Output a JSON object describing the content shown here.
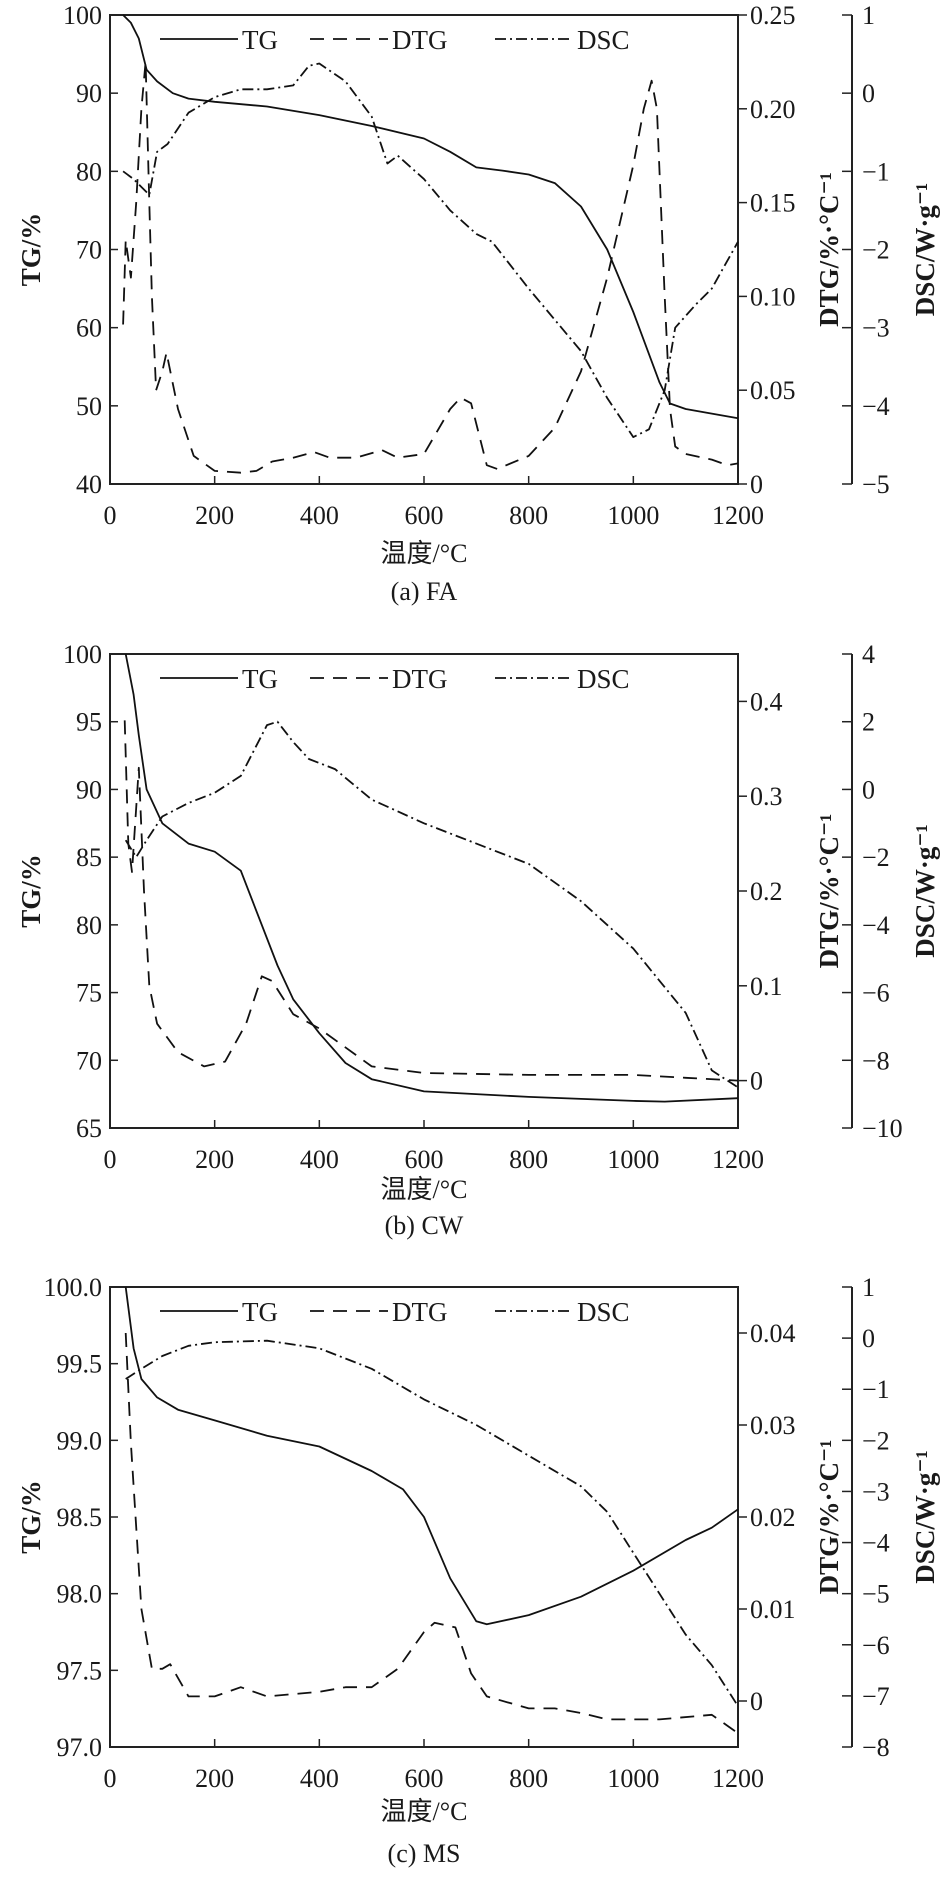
{
  "chart_data": [
    {
      "type": "line",
      "caption": "(a) FA",
      "xlabel": "温度/°C",
      "ylabel": "TG/%",
      "y2label": "DTG/%·°C⁻¹",
      "y3label": "DSC/W·g⁻¹",
      "xlim": [
        0,
        1200
      ],
      "ylim": [
        40,
        100
      ],
      "y2lim": [
        0,
        0.25
      ],
      "y3lim": [
        -5,
        1
      ],
      "xticks": [
        "0",
        "200",
        "400",
        "600",
        "800",
        "1000",
        "1200"
      ],
      "yticks": [
        "40",
        "50",
        "60",
        "70",
        "80",
        "90",
        "100"
      ],
      "y2ticks": [
        "0",
        "0.05",
        "0.10",
        "0.15",
        "0.20",
        "0.25"
      ],
      "y3ticks": [
        "−5",
        "−4",
        "−3",
        "−2",
        "−1",
        "0",
        "1"
      ],
      "legend": [
        "TG",
        "DTG",
        "DSC"
      ],
      "legend_position": "top",
      "series": [
        {
          "name": "TG",
          "axis": "y",
          "style": "solid",
          "points": [
            [
              25,
              100
            ],
            [
              40,
              99
            ],
            [
              55,
              97
            ],
            [
              70,
              93
            ],
            [
              90,
              91.5
            ],
            [
              120,
              90
            ],
            [
              150,
              89.3
            ],
            [
              200,
              88.9
            ],
            [
              300,
              88.3
            ],
            [
              400,
              87.2
            ],
            [
              500,
              85.8
            ],
            [
              600,
              84.2
            ],
            [
              650,
              82.5
            ],
            [
              700,
              80.5
            ],
            [
              750,
              80.1
            ],
            [
              800,
              79.6
            ],
            [
              850,
              78.5
            ],
            [
              900,
              75.5
            ],
            [
              950,
              70
            ],
            [
              1000,
              62
            ],
            [
              1050,
              53
            ],
            [
              1070,
              50.3
            ],
            [
              1100,
              49.6
            ],
            [
              1150,
              49
            ],
            [
              1200,
              48.4
            ]
          ]
        },
        {
          "name": "DTG",
          "axis": "y2",
          "style": "dashed",
          "points": [
            [
              25,
              0.085
            ],
            [
              30,
              0.13
            ],
            [
              40,
              0.11
            ],
            [
              50,
              0.15
            ],
            [
              60,
              0.2
            ],
            [
              68,
              0.225
            ],
            [
              75,
              0.15
            ],
            [
              80,
              0.1
            ],
            [
              88,
              0.05
            ],
            [
              100,
              0.06
            ],
            [
              108,
              0.07
            ],
            [
              130,
              0.04
            ],
            [
              160,
              0.015
            ],
            [
              200,
              0.007
            ],
            [
              250,
              0.006
            ],
            [
              280,
              0.007
            ],
            [
              310,
              0.012
            ],
            [
              350,
              0.014
            ],
            [
              390,
              0.017
            ],
            [
              420,
              0.014
            ],
            [
              470,
              0.014
            ],
            [
              520,
              0.018
            ],
            [
              550,
              0.014
            ],
            [
              600,
              0.016
            ],
            [
              650,
              0.04
            ],
            [
              670,
              0.046
            ],
            [
              690,
              0.043
            ],
            [
              720,
              0.01
            ],
            [
              740,
              0.008
            ],
            [
              800,
              0.015
            ],
            [
              850,
              0.03
            ],
            [
              900,
              0.06
            ],
            [
              950,
              0.11
            ],
            [
              1000,
              0.17
            ],
            [
              1020,
              0.2
            ],
            [
              1035,
              0.215
            ],
            [
              1045,
              0.2
            ],
            [
              1060,
              0.1
            ],
            [
              1070,
              0.04
            ],
            [
              1080,
              0.02
            ],
            [
              1100,
              0.016
            ],
            [
              1150,
              0.013
            ],
            [
              1180,
              0.01
            ],
            [
              1200,
              0.011
            ]
          ]
        },
        {
          "name": "DSC",
          "axis": "y3",
          "style": "dashdot",
          "points": [
            [
              25,
              -1
            ],
            [
              45,
              -1.1
            ],
            [
              60,
              -1.2
            ],
            [
              75,
              -1.3
            ],
            [
              90,
              -0.75
            ],
            [
              110,
              -0.65
            ],
            [
              150,
              -0.25
            ],
            [
              200,
              -0.05
            ],
            [
              250,
              0.05
            ],
            [
              300,
              0.05
            ],
            [
              350,
              0.1
            ],
            [
              380,
              0.35
            ],
            [
              400,
              0.38
            ],
            [
              450,
              0.15
            ],
            [
              500,
              -0.3
            ],
            [
              530,
              -0.9
            ],
            [
              550,
              -0.8
            ],
            [
              600,
              -1.1
            ],
            [
              650,
              -1.5
            ],
            [
              700,
              -1.8
            ],
            [
              730,
              -1.9
            ],
            [
              800,
              -2.5
            ],
            [
              900,
              -3.3
            ],
            [
              950,
              -3.9
            ],
            [
              1000,
              -4.4
            ],
            [
              1030,
              -4.3
            ],
            [
              1060,
              -3.8
            ],
            [
              1080,
              -3.0
            ],
            [
              1120,
              -2.7
            ],
            [
              1150,
              -2.5
            ],
            [
              1200,
              -1.9
            ]
          ]
        }
      ]
    },
    {
      "type": "line",
      "caption": "(b) CW",
      "xlabel": "温度/°C",
      "ylabel": "TG/%",
      "y2label": "DTG/%·°C⁻¹",
      "y3label": "DSC/W·g⁻¹",
      "xlim": [
        0,
        1200
      ],
      "ylim": [
        65,
        100
      ],
      "y2lim": [
        -0.05,
        0.45
      ],
      "y3lim": [
        -10,
        4
      ],
      "xticks": [
        "0",
        "200",
        "400",
        "600",
        "800",
        "1000",
        "1200"
      ],
      "yticks": [
        "65",
        "70",
        "75",
        "80",
        "85",
        "90",
        "95",
        "100"
      ],
      "y2ticks": [
        "0",
        "0.1",
        "0.2",
        "0.3",
        "0.4"
      ],
      "y3ticks": [
        "−10",
        "−8",
        "−6",
        "−4",
        "−2",
        "0",
        "2",
        "4"
      ],
      "legend": [
        "TG",
        "DTG",
        "DSC"
      ],
      "legend_position": "top",
      "series": [
        {
          "name": "TG",
          "axis": "y",
          "style": "solid",
          "points": [
            [
              30,
              100
            ],
            [
              45,
              97
            ],
            [
              55,
              94
            ],
            [
              70,
              90
            ],
            [
              100,
              87.5
            ],
            [
              150,
              86
            ],
            [
              200,
              85.4
            ],
            [
              250,
              84
            ],
            [
              280,
              81
            ],
            [
              320,
              77
            ],
            [
              350,
              74.5
            ],
            [
              400,
              72
            ],
            [
              450,
              69.8
            ],
            [
              500,
              68.6
            ],
            [
              600,
              67.7
            ],
            [
              800,
              67.3
            ],
            [
              1000,
              67
            ],
            [
              1060,
              66.95
            ],
            [
              1200,
              67.2
            ]
          ]
        },
        {
          "name": "DTG",
          "axis": "y2",
          "style": "dashed",
          "points": [
            [
              28,
              0.38
            ],
            [
              35,
              0.25
            ],
            [
              42,
              0.22
            ],
            [
              55,
              0.33
            ],
            [
              65,
              0.2
            ],
            [
              75,
              0.1
            ],
            [
              90,
              0.06
            ],
            [
              130,
              0.03
            ],
            [
              180,
              0.015
            ],
            [
              220,
              0.02
            ],
            [
              260,
              0.06
            ],
            [
              290,
              0.11
            ],
            [
              310,
              0.105
            ],
            [
              350,
              0.07
            ],
            [
              400,
              0.055
            ],
            [
              500,
              0.015
            ],
            [
              600,
              0.008
            ],
            [
              800,
              0.006
            ],
            [
              1000,
              0.006
            ],
            [
              1100,
              0.003
            ],
            [
              1200,
              0.0
            ]
          ]
        },
        {
          "name": "DSC",
          "axis": "y3",
          "style": "dashdot",
          "points": [
            [
              30,
              -1.5
            ],
            [
              50,
              -2
            ],
            [
              70,
              -1.5
            ],
            [
              100,
              -0.8
            ],
            [
              150,
              -0.4
            ],
            [
              200,
              -0.1
            ],
            [
              250,
              0.4
            ],
            [
              300,
              1.9
            ],
            [
              320,
              2.0
            ],
            [
              350,
              1.4
            ],
            [
              380,
              0.9
            ],
            [
              430,
              0.6
            ],
            [
              500,
              -0.3
            ],
            [
              600,
              -1
            ],
            [
              800,
              -2.2
            ],
            [
              900,
              -3.3
            ],
            [
              1000,
              -4.7
            ],
            [
              1100,
              -6.6
            ],
            [
              1150,
              -8.3
            ],
            [
              1200,
              -8.8
            ]
          ]
        }
      ]
    },
    {
      "type": "line",
      "caption": "(c) MS",
      "xlabel": "温度/°C",
      "ylabel": "TG/%",
      "y2label": "DTG/%·°C⁻¹",
      "y3label": "DSC/W·g⁻¹",
      "xlim": [
        0,
        1200
      ],
      "ylim": [
        97,
        100
      ],
      "y2lim": [
        -0.005,
        0.045
      ],
      "y3lim": [
        -8,
        1
      ],
      "xticks": [
        "0",
        "200",
        "400",
        "600",
        "800",
        "1000",
        "1200"
      ],
      "yticks": [
        "97.0",
        "97.5",
        "98.0",
        "98.5",
        "99.0",
        "99.5",
        "100.0"
      ],
      "y2ticks": [
        "0",
        "0.01",
        "0.02",
        "0.03",
        "0.04"
      ],
      "y3ticks": [
        "−8",
        "−7",
        "−6",
        "−5",
        "−4",
        "−3",
        "−2",
        "−1",
        "0",
        "1"
      ],
      "legend": [
        "TG",
        "DTG",
        "DSC"
      ],
      "legend_position": "top",
      "series": [
        {
          "name": "TG",
          "axis": "y",
          "style": "solid",
          "points": [
            [
              30,
              100
            ],
            [
              45,
              99.6
            ],
            [
              60,
              99.4
            ],
            [
              90,
              99.28
            ],
            [
              130,
              99.2
            ],
            [
              200,
              99.13
            ],
            [
              300,
              99.03
            ],
            [
              400,
              98.96
            ],
            [
              500,
              98.8
            ],
            [
              560,
              98.68
            ],
            [
              600,
              98.5
            ],
            [
              650,
              98.1
            ],
            [
              700,
              97.82
            ],
            [
              720,
              97.8
            ],
            [
              800,
              97.86
            ],
            [
              900,
              97.98
            ],
            [
              1000,
              98.15
            ],
            [
              1100,
              98.35
            ],
            [
              1150,
              98.43
            ],
            [
              1200,
              98.55
            ]
          ]
        },
        {
          "name": "DTG",
          "axis": "y2",
          "style": "dashed",
          "points": [
            [
              30,
              0.04
            ],
            [
              40,
              0.028
            ],
            [
              60,
              0.01
            ],
            [
              80,
              0.0035
            ],
            [
              100,
              0.0035
            ],
            [
              115,
              0.004
            ],
            [
              150,
              0.0005
            ],
            [
              200,
              0.0005
            ],
            [
              250,
              0.0015
            ],
            [
              300,
              0.0005
            ],
            [
              400,
              0.001
            ],
            [
              450,
              0.0015
            ],
            [
              500,
              0.0015
            ],
            [
              550,
              0.0035
            ],
            [
              600,
              0.0075
            ],
            [
              620,
              0.0085
            ],
            [
              660,
              0.008
            ],
            [
              690,
              0.003
            ],
            [
              720,
              0.0005
            ],
            [
              800,
              -0.0008
            ],
            [
              850,
              -0.0008
            ],
            [
              900,
              -0.0013
            ],
            [
              950,
              -0.002
            ],
            [
              1000,
              -0.002
            ],
            [
              1050,
              -0.002
            ],
            [
              1150,
              -0.0015
            ],
            [
              1200,
              -0.0035
            ]
          ]
        },
        {
          "name": "DSC",
          "axis": "y3",
          "style": "dashdot",
          "points": [
            [
              30,
              -0.8
            ],
            [
              60,
              -0.6
            ],
            [
              100,
              -0.35
            ],
            [
              150,
              -0.15
            ],
            [
              200,
              -0.08
            ],
            [
              300,
              -0.05
            ],
            [
              400,
              -0.2
            ],
            [
              500,
              -0.6
            ],
            [
              600,
              -1.2
            ],
            [
              700,
              -1.7
            ],
            [
              800,
              -2.3
            ],
            [
              900,
              -2.9
            ],
            [
              950,
              -3.4
            ],
            [
              1000,
              -4.2
            ],
            [
              1050,
              -5
            ],
            [
              1100,
              -5.8
            ],
            [
              1150,
              -6.4
            ],
            [
              1200,
              -7.2
            ]
          ]
        }
      ]
    }
  ]
}
